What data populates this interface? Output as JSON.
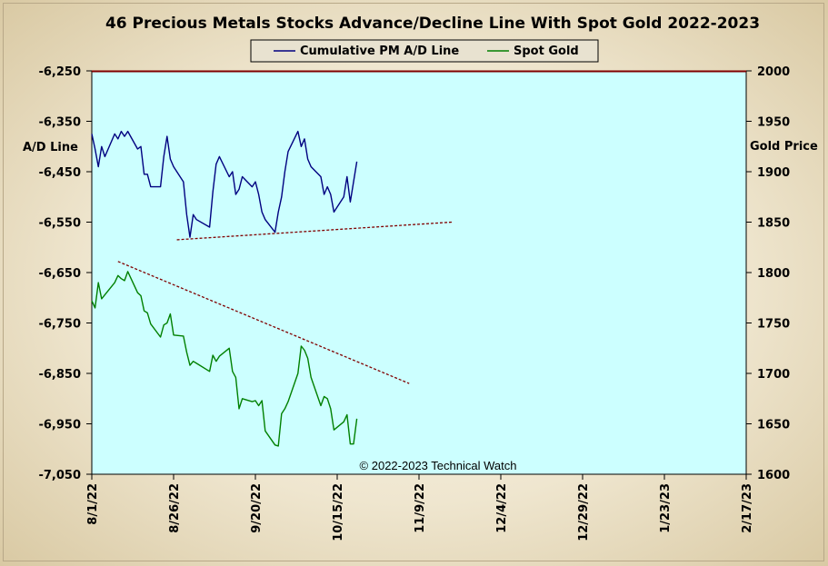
{
  "chart_data": {
    "type": "line",
    "title": "46 Precious Metals Stocks Advance/Decline Line With Spot Gold 2022-2023",
    "legend": {
      "placement": "top-center",
      "entries": [
        {
          "name": "Cumulative PM A/D Line",
          "color": "#000080"
        },
        {
          "name": "Spot Gold",
          "color": "#008000"
        }
      ]
    },
    "ylabel_left": "A/D Line",
    "ylabel_right": "Gold Price",
    "ylim_left": [
      -7050,
      -6250
    ],
    "ylim_right": [
      1600,
      2000
    ],
    "yticks_left": [
      "-6,250",
      "-6,350",
      "-6,450",
      "-6,550",
      "-6,650",
      "-6,750",
      "-6,850",
      "-6,950",
      "-7,050"
    ],
    "yticks_right": [
      "2000",
      "1950",
      "1900",
      "1850",
      "1800",
      "1750",
      "1700",
      "1650",
      "1600"
    ],
    "x_start": "2022-08-01",
    "x_end": "2023-02-17",
    "xticks": [
      "8/1/22",
      "8/26/22",
      "9/20/22",
      "10/15/22",
      "11/9/22",
      "12/4/22",
      "12/29/22",
      "1/23/23",
      "2/17/23"
    ],
    "background_color": "#ccffff",
    "series": [
      {
        "name": "Cumulative PM A/D Line",
        "axis": "left",
        "color": "#000080",
        "x": [
          "2022-08-01",
          "2022-08-02",
          "2022-08-03",
          "2022-08-04",
          "2022-08-05",
          "2022-08-08",
          "2022-08-09",
          "2022-08-10",
          "2022-08-11",
          "2022-08-12",
          "2022-08-15",
          "2022-08-16",
          "2022-08-17",
          "2022-08-18",
          "2022-08-19",
          "2022-08-22",
          "2022-08-23",
          "2022-08-24",
          "2022-08-25",
          "2022-08-26",
          "2022-08-29",
          "2022-08-30",
          "2022-08-31",
          "2022-09-01",
          "2022-09-02",
          "2022-09-06",
          "2022-09-07",
          "2022-09-08",
          "2022-09-09",
          "2022-09-12",
          "2022-09-13",
          "2022-09-14",
          "2022-09-15",
          "2022-09-16",
          "2022-09-19",
          "2022-09-20",
          "2022-09-21",
          "2022-09-22",
          "2022-09-23",
          "2022-09-26",
          "2022-09-27",
          "2022-09-28",
          "2022-09-29",
          "2022-09-30",
          "2022-10-03",
          "2022-10-04",
          "2022-10-05",
          "2022-10-06",
          "2022-10-07",
          "2022-10-10",
          "2022-10-11",
          "2022-10-12",
          "2022-10-13",
          "2022-10-14",
          "2022-10-17",
          "2022-10-18",
          "2022-10-19",
          "2022-10-20",
          "2022-10-21"
        ],
        "values": [
          -6375,
          -6405,
          -6440,
          -6400,
          -6420,
          -6375,
          -6385,
          -6370,
          -6380,
          -6370,
          -6405,
          -6400,
          -6455,
          -6455,
          -6480,
          -6480,
          -6420,
          -6380,
          -6425,
          -6440,
          -6470,
          -6535,
          -6580,
          -6535,
          -6545,
          -6560,
          -6490,
          -6435,
          -6420,
          -6460,
          -6450,
          -6495,
          -6485,
          -6460,
          -6480,
          -6470,
          -6495,
          -6530,
          -6545,
          -6570,
          -6530,
          -6500,
          -6450,
          -6410,
          -6370,
          -6400,
          -6385,
          -6425,
          -6440,
          -6460,
          -6495,
          -6480,
          -6495,
          -6530,
          -6500,
          -6460,
          -6510,
          -6470,
          -6430
        ]
      },
      {
        "name": "Spot Gold",
        "axis": "right",
        "color": "#008000",
        "x": [
          "2022-08-01",
          "2022-08-02",
          "2022-08-03",
          "2022-08-04",
          "2022-08-05",
          "2022-08-08",
          "2022-08-09",
          "2022-08-10",
          "2022-08-11",
          "2022-08-12",
          "2022-08-15",
          "2022-08-16",
          "2022-08-17",
          "2022-08-18",
          "2022-08-19",
          "2022-08-22",
          "2022-08-23",
          "2022-08-24",
          "2022-08-25",
          "2022-08-26",
          "2022-08-29",
          "2022-08-30",
          "2022-08-31",
          "2022-09-01",
          "2022-09-02",
          "2022-09-06",
          "2022-09-07",
          "2022-09-08",
          "2022-09-09",
          "2022-09-12",
          "2022-09-13",
          "2022-09-14",
          "2022-09-15",
          "2022-09-16",
          "2022-09-19",
          "2022-09-20",
          "2022-09-21",
          "2022-09-22",
          "2022-09-23",
          "2022-09-26",
          "2022-09-27",
          "2022-09-28",
          "2022-09-29",
          "2022-09-30",
          "2022-10-03",
          "2022-10-04",
          "2022-10-05",
          "2022-10-06",
          "2022-10-07",
          "2022-10-10",
          "2022-10-11",
          "2022-10-12",
          "2022-10-13",
          "2022-10-14",
          "2022-10-17",
          "2022-10-18",
          "2022-10-19",
          "2022-10-20",
          "2022-10-21"
        ],
        "values": [
          1772,
          1765,
          1790,
          1774,
          1778,
          1790,
          1797,
          1794,
          1792,
          1801,
          1780,
          1777,
          1762,
          1760,
          1749,
          1736,
          1748,
          1750,
          1759,
          1738,
          1737,
          1721,
          1708,
          1712,
          1710,
          1702,
          1718,
          1712,
          1717,
          1725,
          1702,
          1696,
          1665,
          1675,
          1672,
          1673,
          1668,
          1673,
          1643,
          1629,
          1628,
          1660,
          1665,
          1672,
          1700,
          1727,
          1723,
          1715,
          1696,
          1668,
          1677,
          1675,
          1665,
          1644,
          1652,
          1659,
          1630,
          1630,
          1655
        ]
      }
    ],
    "trendlines": [
      {
        "axis": "left",
        "color": "#800000",
        "style": "dashed",
        "from": {
          "x": "2022-08-27",
          "y": -6585
        },
        "to": {
          "x": "2022-11-19",
          "y": -6550
        }
      },
      {
        "axis": "right",
        "color": "#800000",
        "style": "dashed",
        "from": {
          "x": "2022-08-09",
          "y": 1811
        },
        "to": {
          "x": "2022-11-06",
          "y": 1690
        }
      }
    ],
    "annotation": "© 2022-2023  Technical  Watch"
  }
}
